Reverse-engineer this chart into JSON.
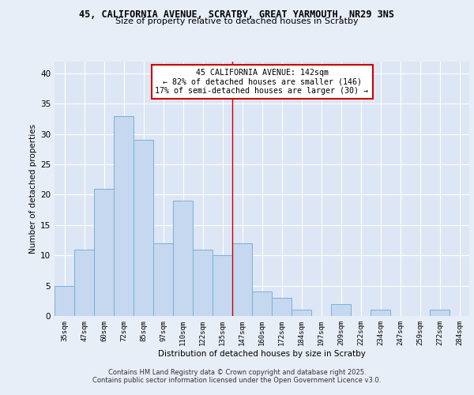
{
  "title1": "45, CALIFORNIA AVENUE, SCRATBY, GREAT YARMOUTH, NR29 3NS",
  "title2": "Size of property relative to detached houses in Scratby",
  "xlabel": "Distribution of detached houses by size in Scratby",
  "ylabel": "Number of detached properties",
  "categories": [
    "35sqm",
    "47sqm",
    "60sqm",
    "72sqm",
    "85sqm",
    "97sqm",
    "110sqm",
    "122sqm",
    "135sqm",
    "147sqm",
    "160sqm",
    "172sqm",
    "184sqm",
    "197sqm",
    "209sqm",
    "222sqm",
    "234sqm",
    "247sqm",
    "259sqm",
    "272sqm",
    "284sqm"
  ],
  "values": [
    5,
    11,
    21,
    33,
    29,
    12,
    19,
    11,
    10,
    12,
    4,
    3,
    1,
    0,
    2,
    0,
    1,
    0,
    0,
    1,
    0
  ],
  "bar_color": "#c5d8f0",
  "bar_edge_color": "#7aafd4",
  "annotation_title": "45 CALIFORNIA AVENUE: 142sqm",
  "annotation_line1": "← 82% of detached houses are smaller (146)",
  "annotation_line2": "17% of semi-detached houses are larger (30) →",
  "annotation_box_color": "#ffffff",
  "annotation_box_edge": "#cc0000",
  "line_color": "#cc0000",
  "ylim": [
    0,
    42
  ],
  "yticks": [
    0,
    5,
    10,
    15,
    20,
    25,
    30,
    35,
    40
  ],
  "fig_background": "#e8eef8",
  "ax_background": "#dde6f4",
  "footer1": "Contains HM Land Registry data © Crown copyright and database right 2025.",
  "footer2": "Contains public sector information licensed under the Open Government Licence v3.0."
}
